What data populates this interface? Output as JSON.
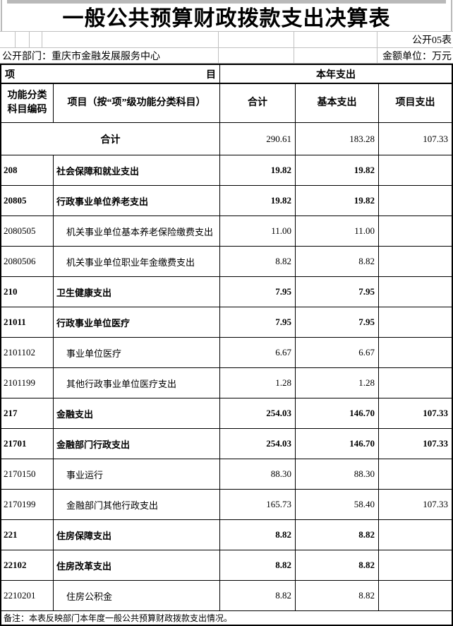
{
  "title": "一般公共预算财政拨款支出决算表",
  "meta": {
    "table_no": "公开05表",
    "department": "公开部门：重庆市金融发展服务中心",
    "unit": "金额单位：万元"
  },
  "table": {
    "header": {
      "item_left": "项",
      "item_right": "目",
      "year_expense": "本年支出",
      "code_col": "功能分类科目编码",
      "project_col": "项目（按“项”级功能分类科目）",
      "total_col": "合计",
      "basic_col": "基本支出",
      "project_expense_col": "项目支出"
    },
    "rows": [
      {
        "code": "",
        "name": "合计",
        "total": "290.61",
        "basic": "183.28",
        "project": "107.33",
        "level": "total"
      },
      {
        "code": "208",
        "name": "社会保障和就业支出",
        "total": "19.82",
        "basic": "19.82",
        "project": "",
        "level": "bold"
      },
      {
        "code": "20805",
        "name": "行政事业单位养老支出",
        "total": "19.82",
        "basic": "19.82",
        "project": "",
        "level": "bold"
      },
      {
        "code": "2080505",
        "name": "机关事业单位基本养老保险缴费支出",
        "total": "11.00",
        "basic": "11.00",
        "project": "",
        "level": "sub"
      },
      {
        "code": "2080506",
        "name": "机关事业单位职业年金缴费支出",
        "total": "8.82",
        "basic": "8.82",
        "project": "",
        "level": "sub"
      },
      {
        "code": "210",
        "name": "卫生健康支出",
        "total": "7.95",
        "basic": "7.95",
        "project": "",
        "level": "bold"
      },
      {
        "code": "21011",
        "name": "行政事业单位医疗",
        "total": "7.95",
        "basic": "7.95",
        "project": "",
        "level": "bold"
      },
      {
        "code": "2101102",
        "name": "事业单位医疗",
        "total": "6.67",
        "basic": "6.67",
        "project": "",
        "level": "sub"
      },
      {
        "code": "2101199",
        "name": "其他行政事业单位医疗支出",
        "total": "1.28",
        "basic": "1.28",
        "project": "",
        "level": "sub"
      },
      {
        "code": "217",
        "name": "金融支出",
        "total": "254.03",
        "basic": "146.70",
        "project": "107.33",
        "level": "bold"
      },
      {
        "code": "21701",
        "name": "金融部门行政支出",
        "total": "254.03",
        "basic": "146.70",
        "project": "107.33",
        "level": "bold"
      },
      {
        "code": "2170150",
        "name": "事业运行",
        "total": "88.30",
        "basic": "88.30",
        "project": "",
        "level": "sub"
      },
      {
        "code": "2170199",
        "name": "金融部门其他行政支出",
        "total": "165.73",
        "basic": "58.40",
        "project": "107.33",
        "level": "sub"
      },
      {
        "code": "221",
        "name": "住房保障支出",
        "total": "8.82",
        "basic": "8.82",
        "project": "",
        "level": "bold"
      },
      {
        "code": "22102",
        "name": "住房改革支出",
        "total": "8.82",
        "basic": "8.82",
        "project": "",
        "level": "bold"
      },
      {
        "code": "2210201",
        "name": "住房公积金",
        "total": "8.82",
        "basic": "8.82",
        "project": "",
        "level": "sub"
      }
    ],
    "footnote": "备注：本表反映部门本年度一般公共预算财政拨款支出情况。"
  },
  "colors": {
    "background": "#ffffff",
    "border": "#000000",
    "light_grid": "#c0c0c0",
    "title_frame": "#b9b9b9"
  }
}
